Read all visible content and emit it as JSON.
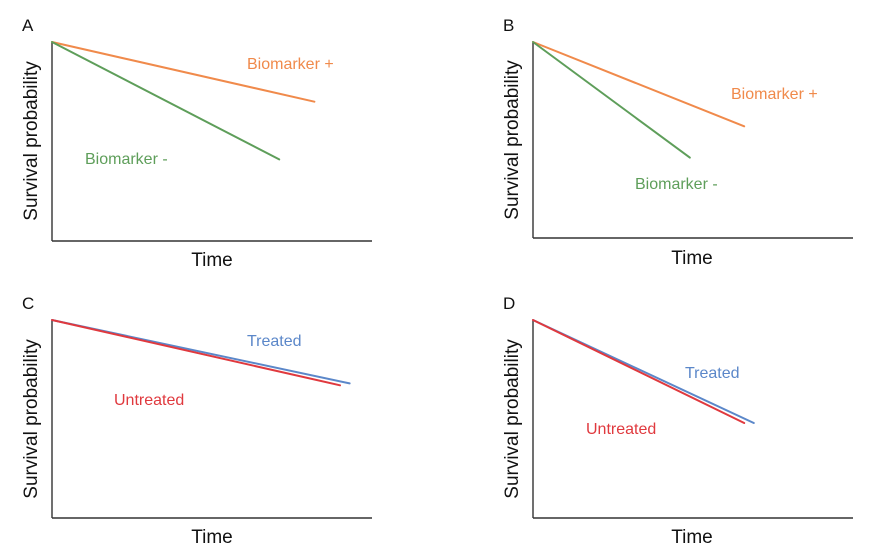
{
  "chart_data": [
    {
      "panel": "A",
      "type": "line",
      "xlabel": "Time",
      "ylabel": "Survival probability",
      "xlim": [
        0,
        1
      ],
      "ylim": [
        0,
        1
      ],
      "series": [
        {
          "name": "Biomarker +",
          "color": "#F08A4B",
          "x": [
            0,
            0.82
          ],
          "y": [
            1.0,
            0.7
          ]
        },
        {
          "name": "Biomarker -",
          "color": "#5E9E5A",
          "x": [
            0,
            0.71
          ],
          "y": [
            1.0,
            0.41
          ]
        }
      ]
    },
    {
      "panel": "B",
      "type": "line",
      "xlabel": "Time",
      "ylabel": "Survival probability",
      "xlim": [
        0,
        1
      ],
      "ylim": [
        0,
        1
      ],
      "series": [
        {
          "name": "Biomarker +",
          "color": "#F08A4B",
          "x": [
            0,
            0.66
          ],
          "y": [
            1.0,
            0.57
          ]
        },
        {
          "name": "Biomarker -",
          "color": "#5E9E5A",
          "x": [
            0,
            0.49
          ],
          "y": [
            1.0,
            0.41
          ]
        }
      ]
    },
    {
      "panel": "C",
      "type": "line",
      "xlabel": "Time",
      "ylabel": "Survival probability",
      "xlim": [
        0,
        1
      ],
      "ylim": [
        0,
        1
      ],
      "series": [
        {
          "name": "Treated",
          "color": "#5B87C9",
          "x": [
            0,
            0.93
          ],
          "y": [
            1.0,
            0.68
          ]
        },
        {
          "name": "Untreated",
          "color": "#E0393E",
          "x": [
            0,
            0.9
          ],
          "y": [
            1.0,
            0.67
          ]
        }
      ]
    },
    {
      "panel": "D",
      "type": "line",
      "xlabel": "Time",
      "ylabel": "Survival probability",
      "xlim": [
        0,
        1
      ],
      "ylim": [
        0,
        1
      ],
      "series": [
        {
          "name": "Treated",
          "color": "#5B87C9",
          "x": [
            0,
            0.69
          ],
          "y": [
            1.0,
            0.48
          ]
        },
        {
          "name": "Untreated",
          "color": "#E0393E",
          "x": [
            0,
            0.66
          ],
          "y": [
            1.0,
            0.48
          ]
        }
      ]
    }
  ]
}
